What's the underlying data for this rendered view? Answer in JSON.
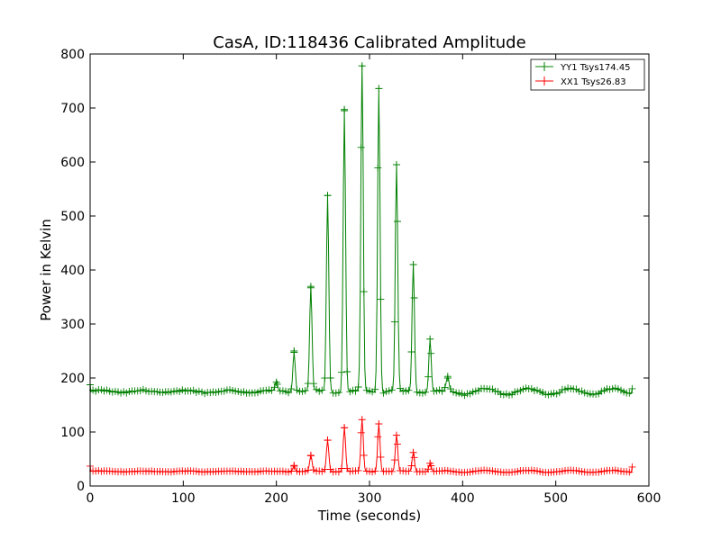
{
  "chart_data": {
    "type": "line",
    "title": "CasA, ID:118436 Calibrated Amplitude",
    "xlabel": "Time (seconds)",
    "ylabel": "Power in Kelvin",
    "xlim": [
      0,
      600
    ],
    "ylim": [
      0,
      800
    ],
    "xticks": [
      "0",
      "100",
      "200",
      "300",
      "400",
      "500",
      "600"
    ],
    "yticks": [
      "0",
      "100",
      "200",
      "300",
      "400",
      "500",
      "600",
      "700",
      "800"
    ],
    "grid": false,
    "legend_position": "top-right",
    "colors": {
      "YY1": "#008000",
      "XX1": "#ff0000"
    },
    "marker": "+",
    "series": [
      {
        "name": "YY1 Tsys174.45",
        "baseline": 175,
        "peaks": [
          {
            "t": 200,
            "v": 192
          },
          {
            "t": 219,
            "v": 250
          },
          {
            "t": 237,
            "v": 367
          },
          {
            "t": 255,
            "v": 538
          },
          {
            "t": 273,
            "v": 697
          },
          {
            "t": 292,
            "v": 778
          },
          {
            "t": 310,
            "v": 736
          },
          {
            "t": 329,
            "v": 595
          },
          {
            "t": 347,
            "v": 410
          },
          {
            "t": 365,
            "v": 272
          },
          {
            "t": 384,
            "v": 200
          }
        ]
      },
      {
        "name": "XX1 Tsys26.83",
        "baseline": 27,
        "peaks": [
          {
            "t": 219,
            "v": 38
          },
          {
            "t": 237,
            "v": 56
          },
          {
            "t": 255,
            "v": 85
          },
          {
            "t": 273,
            "v": 108
          },
          {
            "t": 292,
            "v": 123
          },
          {
            "t": 310,
            "v": 115
          },
          {
            "t": 329,
            "v": 94
          },
          {
            "t": 347,
            "v": 62
          },
          {
            "t": 365,
            "v": 42
          }
        ]
      }
    ],
    "x_range": [
      0,
      582
    ]
  }
}
